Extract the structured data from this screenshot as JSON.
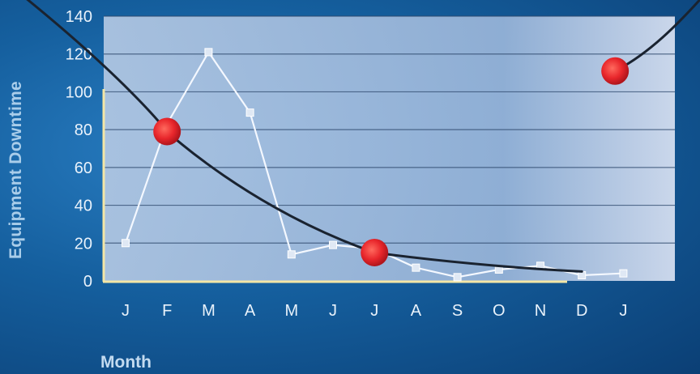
{
  "chart_data": {
    "type": "line",
    "title": "",
    "xlabel": "Month",
    "ylabel": "Equipment Downtime",
    "categories": [
      "J",
      "F",
      "M",
      "A",
      "M",
      "J",
      "J",
      "A",
      "S",
      "O",
      "N",
      "D",
      "J"
    ],
    "series": [
      {
        "values": [
          20,
          83,
          121,
          89,
          14,
          19,
          17,
          7,
          2,
          6,
          8,
          3,
          4
        ]
      }
    ],
    "ylim": [
      0,
      140
    ],
    "yticks": [
      0,
      20,
      40,
      60,
      80,
      100,
      120,
      140
    ],
    "grid": true,
    "trend_curve": {
      "description": "dark decaying curve from top-left toward later months, rising again at the end"
    },
    "highlight_points": [
      {
        "x": "F",
        "y": 79
      },
      {
        "x": "J",
        "y": 15
      },
      {
        "x": "J",
        "y": 111
      }
    ],
    "colors": {
      "series_line": "#f4f8ff",
      "marker_highlight": "#e8262b",
      "trend_curve": "#1a2330",
      "axis": "#f3e6a6"
    }
  }
}
